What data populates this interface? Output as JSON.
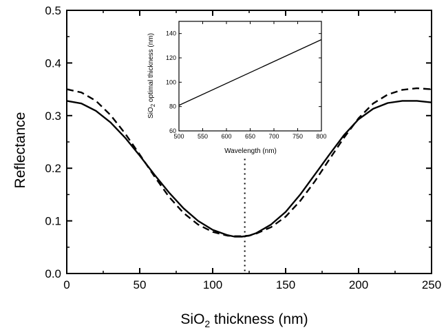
{
  "chart_data": [
    {
      "type": "line",
      "xlabel_prefix": "SiO",
      "xlabel_sub": "2",
      "xlabel_suffix": " thickness (nm)",
      "ylabel": "Reflectance",
      "xlim": [
        0,
        250
      ],
      "ylim": [
        0,
        0.5
      ],
      "x_ticks": [
        "0",
        "50",
        "100",
        "150",
        "200",
        "250"
      ],
      "y_ticks": [
        "0.0",
        "0.1",
        "0.2",
        "0.3",
        "0.4",
        "0.5"
      ],
      "grid": false,
      "series": [
        {
          "style": "solid",
          "color": "#000000",
          "x": [
            0,
            10,
            20,
            30,
            40,
            50,
            60,
            70,
            80,
            90,
            100,
            110,
            115,
            120,
            125,
            130,
            140,
            150,
            160,
            170,
            180,
            190,
            200,
            210,
            220,
            230,
            240,
            250
          ],
          "y": [
            0.328,
            0.323,
            0.309,
            0.287,
            0.258,
            0.224,
            0.188,
            0.154,
            0.124,
            0.1,
            0.083,
            0.073,
            0.07,
            0.07,
            0.072,
            0.077,
            0.093,
            0.117,
            0.15,
            0.188,
            0.226,
            0.263,
            0.293,
            0.313,
            0.324,
            0.328,
            0.328,
            0.325
          ]
        },
        {
          "style": "dashed",
          "color": "#000000",
          "x": [
            0,
            10,
            20,
            30,
            40,
            50,
            60,
            70,
            80,
            90,
            100,
            110,
            115,
            120,
            125,
            130,
            140,
            150,
            160,
            170,
            180,
            190,
            200,
            210,
            220,
            230,
            240,
            250
          ],
          "y": [
            0.35,
            0.344,
            0.328,
            0.301,
            0.266,
            0.226,
            0.185,
            0.146,
            0.115,
            0.093,
            0.079,
            0.072,
            0.071,
            0.071,
            0.072,
            0.076,
            0.088,
            0.108,
            0.138,
            0.175,
            0.217,
            0.258,
            0.295,
            0.323,
            0.34,
            0.349,
            0.352,
            0.35
          ]
        }
      ],
      "vline": {
        "x": 122,
        "style": "dotted"
      }
    },
    {
      "type": "line",
      "xlabel": "Wavelength (nm)",
      "ylabel_prefix": "SiO",
      "ylabel_sub": "2",
      "ylabel_suffix": " optimal thickness (nm)",
      "xlim": [
        500,
        800
      ],
      "ylim": [
        60,
        150
      ],
      "x_ticks": [
        "500",
        "550",
        "600",
        "650",
        "700",
        "750",
        "800"
      ],
      "y_ticks": [
        "60",
        "80",
        "100",
        "120",
        "140"
      ],
      "series": [
        {
          "style": "solid",
          "color": "#000000",
          "x": [
            500,
            800
          ],
          "y": [
            81,
            135
          ]
        }
      ]
    }
  ]
}
